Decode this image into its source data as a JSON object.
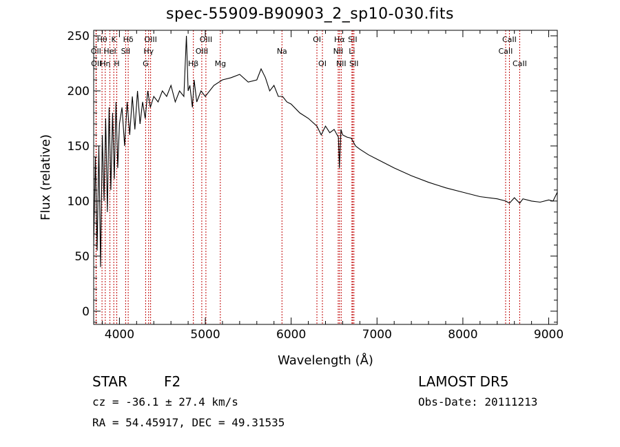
{
  "chart_data": {
    "type": "line",
    "title": "spec-55909-B90903_2_sp10-030.fits",
    "xlabel": "Wavelength (Å)",
    "ylabel": "Flux (relative)",
    "xlim": [
      3700,
      9100
    ],
    "ylim": [
      -12,
      255
    ],
    "xticks": [
      4000,
      5000,
      6000,
      7000,
      8000,
      9000
    ],
    "yticks": [
      0,
      50,
      100,
      150,
      200,
      250
    ],
    "grid": false,
    "series": [
      {
        "x": [
          3700,
          3720,
          3740,
          3760,
          3780,
          3800,
          3820,
          3840,
          3860,
          3880,
          3900,
          3920,
          3940,
          3960,
          3980,
          4000,
          4030,
          4060,
          4090,
          4120,
          4150,
          4180,
          4210,
          4240,
          4270,
          4300,
          4330,
          4360,
          4400,
          4450,
          4500,
          4550,
          4600,
          4650,
          4700,
          4750,
          4780,
          4800,
          4820,
          4850,
          4870,
          4900,
          4950,
          5000,
          5100,
          5200,
          5300,
          5400,
          5500,
          5600,
          5650,
          5700,
          5750,
          5800,
          5850,
          5900,
          5950,
          6000,
          6100,
          6200,
          6300,
          6350,
          6400,
          6450,
          6500,
          6550,
          6562,
          6580,
          6600,
          6650,
          6700,
          6750,
          6800,
          6900,
          7000,
          7200,
          7400,
          7600,
          7800,
          8000,
          8200,
          8400,
          8500,
          8542,
          8600,
          8662,
          8700,
          8800,
          8900,
          9000,
          9050,
          9100
        ],
        "y": [
          60,
          140,
          55,
          150,
          40,
          160,
          100,
          175,
          90,
          185,
          110,
          180,
          120,
          190,
          130,
          170,
          185,
          150,
          190,
          160,
          195,
          165,
          200,
          170,
          190,
          175,
          200,
          185,
          195,
          190,
          200,
          195,
          205,
          190,
          200,
          195,
          250,
          200,
          205,
          185,
          210,
          190,
          200,
          195,
          205,
          210,
          212,
          215,
          208,
          210,
          220,
          212,
          200,
          205,
          195,
          195,
          190,
          188,
          180,
          175,
          168,
          160,
          168,
          162,
          165,
          158,
          130,
          165,
          160,
          158,
          157,
          150,
          147,
          142,
          138,
          130,
          123,
          117,
          112,
          108,
          104,
          102,
          100,
          98,
          103,
          98,
          102,
          100,
          99,
          101,
          100,
          108
        ]
      }
    ],
    "lines": [
      {
        "label": "Hθ",
        "wl": 3797,
        "row": 1
      },
      {
        "label": "OII",
        "wl": 3727,
        "row": 2
      },
      {
        "label": "OII",
        "wl": 3730,
        "row": 3
      },
      {
        "label": "Hη",
        "wl": 3835,
        "row": 3
      },
      {
        "label": "K",
        "wl": 3934,
        "row": 1
      },
      {
        "label": "HeI",
        "wl": 3889,
        "row": 2
      },
      {
        "label": "H",
        "wl": 3969,
        "row": 3
      },
      {
        "label": "Hδ",
        "wl": 4102,
        "row": 1
      },
      {
        "label": "SII",
        "wl": 4072,
        "row": 2
      },
      {
        "label": "OIII",
        "wl": 4363,
        "row": 1
      },
      {
        "label": "Hγ",
        "wl": 4340,
        "row": 2
      },
      {
        "label": "G",
        "wl": 4305,
        "row": 3
      },
      {
        "label": "Hβ",
        "wl": 4861,
        "row": 3
      },
      {
        "label": "OIII",
        "wl": 4959,
        "row": 2
      },
      {
        "label": "OIII",
        "wl": 5007,
        "row": 1
      },
      {
        "label": "Mg",
        "wl": 5175,
        "row": 3
      },
      {
        "label": "Na",
        "wl": 5893,
        "row": 2
      },
      {
        "label": "OI",
        "wl": 6300,
        "row": 1
      },
      {
        "label": "OI",
        "wl": 6364,
        "row": 3
      },
      {
        "label": "Hα",
        "wl": 6563,
        "row": 1
      },
      {
        "label": "NII",
        "wl": 6548,
        "row": 2
      },
      {
        "label": "NII",
        "wl": 6583,
        "row": 3
      },
      {
        "label": "SII",
        "wl": 6716,
        "row": 1
      },
      {
        "label": "Li",
        "wl": 6708,
        "row": 2
      },
      {
        "label": "SII",
        "wl": 6731,
        "row": 3
      },
      {
        "label": "CaII",
        "wl": 8542,
        "row": 1
      },
      {
        "label": "CaII",
        "wl": 8498,
        "row": 2
      },
      {
        "label": "CaII",
        "wl": 8662,
        "row": 3
      }
    ]
  },
  "info": {
    "obj_class": "STAR",
    "subclass": "F2",
    "survey": "LAMOST DR5",
    "cz": "cz = -36.1 ± 27.4 km/s",
    "obs_date": "Obs-Date: 20111213",
    "radec": "RA =  54.45917, DEC =  49.31535"
  },
  "colors": {
    "line_marker": "#c00000",
    "spectrum": "#000000"
  }
}
